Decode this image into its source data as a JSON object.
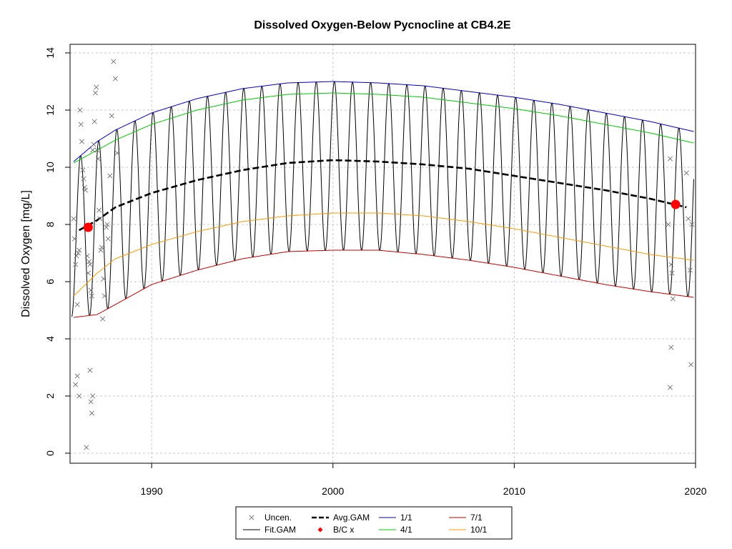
{
  "chart_data": {
    "type": "line",
    "title": "Dissolved Oxygen-Below Pycnocline at CB4.2E",
    "xlabel": "",
    "ylabel": "Dissolved Oxygen [mg/L]",
    "xlim": [
      1985.5,
      2020.0
    ],
    "ylim": [
      0,
      14
    ],
    "x_ticks": [
      1990,
      2000,
      2010,
      2020
    ],
    "x_tick_labels": [
      "1990",
      "2000",
      "2010",
      "2020"
    ],
    "y_ticks": [
      0,
      2,
      4,
      6,
      8,
      10,
      12,
      14
    ],
    "y_tick_labels": [
      "0",
      "2",
      "4",
      "6",
      "8",
      "10",
      "12",
      "14"
    ],
    "grid": true,
    "legend_position": "bottom-center",
    "legend": [
      {
        "label": "Uncen.",
        "kind": "marker-x",
        "color": "#777777"
      },
      {
        "label": "Fit.GAM",
        "kind": "line",
        "color": "#000000"
      },
      {
        "label": "Avg.GAM",
        "kind": "dash",
        "color": "#000000"
      },
      {
        "label": "B/C x",
        "kind": "marker-diamond",
        "color": "#ff0000"
      },
      {
        "label": "1/1",
        "kind": "line",
        "color": "#0000cc"
      },
      {
        "label": "4/1",
        "kind": "line",
        "color": "#00cc00"
      },
      {
        "label": "7/1",
        "kind": "line",
        "color": "#cc0000"
      },
      {
        "label": "10/1",
        "kind": "line",
        "color": "#ff9900"
      }
    ],
    "series": [
      {
        "name": "1/1",
        "color": "#0000cc",
        "x": [
          1985.7,
          1987.0,
          1988.0,
          1990.0,
          1992.5,
          1995.0,
          1997.5,
          2000.0,
          2002.5,
          2005.0,
          2007.5,
          2010.0,
          2012.5,
          2015.0,
          2017.5,
          2019.9
        ],
        "y": [
          10.2,
          10.9,
          11.3,
          11.9,
          12.4,
          12.75,
          12.95,
          13.0,
          12.95,
          12.85,
          12.65,
          12.45,
          12.2,
          11.9,
          11.6,
          11.25
        ]
      },
      {
        "name": "4/1",
        "color": "#00cc00",
        "x": [
          1985.7,
          1987.0,
          1988.0,
          1990.0,
          1992.5,
          1995.0,
          1997.5,
          2000.0,
          2002.5,
          2005.0,
          2007.5,
          2010.0,
          2012.5,
          2015.0,
          2017.5,
          2019.9
        ],
        "y": [
          10.15,
          10.6,
          10.95,
          11.5,
          12.0,
          12.35,
          12.55,
          12.6,
          12.55,
          12.45,
          12.25,
          12.05,
          11.8,
          11.5,
          11.2,
          10.85
        ]
      },
      {
        "name": "7/1",
        "color": "#cc0000",
        "x": [
          1985.7,
          1987.0,
          1988.0,
          1990.0,
          1992.5,
          1995.0,
          1997.5,
          2000.0,
          2002.5,
          2005.0,
          2007.5,
          2010.0,
          2012.5,
          2015.0,
          2017.5,
          2019.9
        ],
        "y": [
          4.75,
          4.85,
          5.2,
          5.9,
          6.4,
          6.8,
          7.05,
          7.1,
          7.1,
          6.95,
          6.75,
          6.5,
          6.2,
          5.9,
          5.65,
          5.45
        ]
      },
      {
        "name": "10/1",
        "color": "#ff9900",
        "x": [
          1985.7,
          1987.0,
          1988.0,
          1990.0,
          1992.5,
          1995.0,
          1997.5,
          2000.0,
          2002.5,
          2005.0,
          2007.5,
          2010.0,
          2012.5,
          2015.0,
          2017.5,
          2019.9
        ],
        "y": [
          5.5,
          6.3,
          6.8,
          7.3,
          7.75,
          8.1,
          8.3,
          8.4,
          8.4,
          8.3,
          8.1,
          7.85,
          7.55,
          7.25,
          6.95,
          6.75
        ]
      },
      {
        "name": "Avg.GAM",
        "color": "#000000",
        "x": [
          1986.0,
          1987.0,
          1988.0,
          1990.0,
          1992.5,
          1995.0,
          1997.5,
          2000.0,
          2002.5,
          2005.0,
          2007.5,
          2010.0,
          2012.5,
          2015.0,
          2017.5,
          2019.5
        ],
        "y": [
          7.8,
          8.15,
          8.6,
          9.1,
          9.55,
          9.9,
          10.15,
          10.25,
          10.2,
          10.1,
          9.95,
          9.7,
          9.45,
          9.2,
          8.9,
          8.6
        ]
      }
    ],
    "seasonal_fit": {
      "name": "Fit.GAM",
      "color": "#000000",
      "x_start": 1985.6,
      "x_end": 2019.9,
      "peak_month_phase": 0.2
    },
    "observations": {
      "name": "Uncen.",
      "color": "#777777",
      "x": [
        1985.7,
        1985.75,
        1985.8,
        1985.85,
        1985.9,
        1985.95,
        1986.0,
        1986.05,
        1986.1,
        1986.15,
        1986.2,
        1986.25,
        1986.3,
        1986.35,
        1986.4,
        1986.45,
        1986.5,
        1986.55,
        1986.6,
        1986.65,
        1986.7,
        1986.75,
        1986.8,
        1986.85,
        1986.9,
        1986.95,
        1987.0,
        1987.05,
        1987.1,
        1987.15,
        1987.2,
        1987.25,
        1987.3,
        1987.35,
        1987.4,
        1987.5,
        1987.55,
        1987.6,
        1987.7,
        1987.8,
        1987.9,
        1988.0,
        1988.1,
        1985.8,
        1985.9,
        1986.0,
        1986.4,
        1986.6,
        1986.65,
        1986.7,
        1986.75,
        2018.5,
        2018.6,
        2018.65,
        2018.7,
        2018.75,
        2018.6,
        2018.65,
        2019.5,
        2019.6,
        2019.7,
        2019.75,
        2019.8
      ],
      "y": [
        8.2,
        7.5,
        6.6,
        6.9,
        5.2,
        7.0,
        7.1,
        12.0,
        11.5,
        10.9,
        9.9,
        9.6,
        9.3,
        9.2,
        7.9,
        6.9,
        6.3,
        6.7,
        6.6,
        5.7,
        5.5,
        10.6,
        10.8,
        11.6,
        12.6,
        12.8,
        10.6,
        10.3,
        8.5,
        8.2,
        7.1,
        7.2,
        4.7,
        6.1,
        5.5,
        7.9,
        8.0,
        7.5,
        9.7,
        11.8,
        13.7,
        13.1,
        10.5,
        2.4,
        2.7,
        2.0,
        0.2,
        2.9,
        1.8,
        1.4,
        2.0,
        8.0,
        10.3,
        6.6,
        6.3,
        5.4,
        2.3,
        3.7,
        9.8,
        8.2,
        6.4,
        3.1,
        8.0
      ],
      "marker": "x"
    },
    "bc_points": {
      "name": "B/C x",
      "color": "#ff0000",
      "x": [
        1986.5,
        2018.9
      ],
      "y": [
        7.9,
        8.7
      ]
    }
  }
}
